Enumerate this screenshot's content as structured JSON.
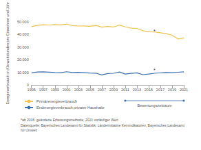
{
  "chart_data": {
    "type": "line",
    "y_label": "Energieverbrauch in Kilowattstunden pro Einwohner und Jahr",
    "x": [
      1995,
      1996,
      1997,
      1998,
      1999,
      2000,
      2001,
      2002,
      2003,
      2004,
      2005,
      2006,
      2007,
      2008,
      2009,
      2010,
      2011,
      2012,
      2013,
      2014,
      2015,
      2016,
      2017,
      2018,
      2019,
      2020,
      2021
    ],
    "series": [
      {
        "name": "Primärenergieverbrauch",
        "color": "#f2c14e",
        "values": [
          46000,
          47000,
          47500,
          47300,
          47600,
          47400,
          48000,
          46800,
          46500,
          46600,
          46300,
          47000,
          45600,
          46200,
          45700,
          47200,
          45800,
          44800,
          44600,
          42800,
          42000,
          41800,
          41200,
          40500,
          39200,
          36300,
          37000
        ]
      },
      {
        "name": "Endenergieverbrauch privater Haushalte",
        "color": "#3b6fb0",
        "values": [
          9500,
          10200,
          10300,
          10100,
          9800,
          9700,
          10400,
          9800,
          9900,
          9700,
          9400,
          9300,
          7900,
          9000,
          9200,
          10200,
          8600,
          9100,
          9500,
          8100,
          8600,
          9200,
          9600,
          9800,
          9700,
          10000,
          10300
        ]
      }
    ],
    "xlim": [
      1995,
      2021
    ],
    "xticks": [
      1995,
      1997,
      1999,
      2001,
      2003,
      2005,
      2007,
      2009,
      2011,
      2013,
      2015,
      2017,
      2019,
      2021
    ],
    "ylim": [
      0,
      50000
    ],
    "yticks": [
      0,
      {
        "value": 10000,
        "label": "10.000"
      },
      {
        "value": 20000,
        "label": "20.000"
      },
      {
        "value": 30000,
        "label": "30.000"
      },
      {
        "value": 40000,
        "label": "40.000"
      },
      {
        "value": 50000,
        "label": "50.000"
      }
    ],
    "grid": false,
    "legend": "bottom-left",
    "annotations": [
      {
        "text": "*",
        "x": 2016,
        "y": 42500
      },
      {
        "text": "*",
        "x": 2016,
        "y": 11500
      },
      {
        "text": "Bewertungszeitraum",
        "x_from": 2011,
        "x_to": 2021
      }
    ],
    "footnote": "*ab 2016: geänderte Erfassungsmethode, 2021 vorläufiger Wert",
    "source": "Datenquelle: Bayerisches Landesamt für Statistik, Länderinitiative Kernindikatoren, Bayerisches Landesamt für Umwelt"
  }
}
